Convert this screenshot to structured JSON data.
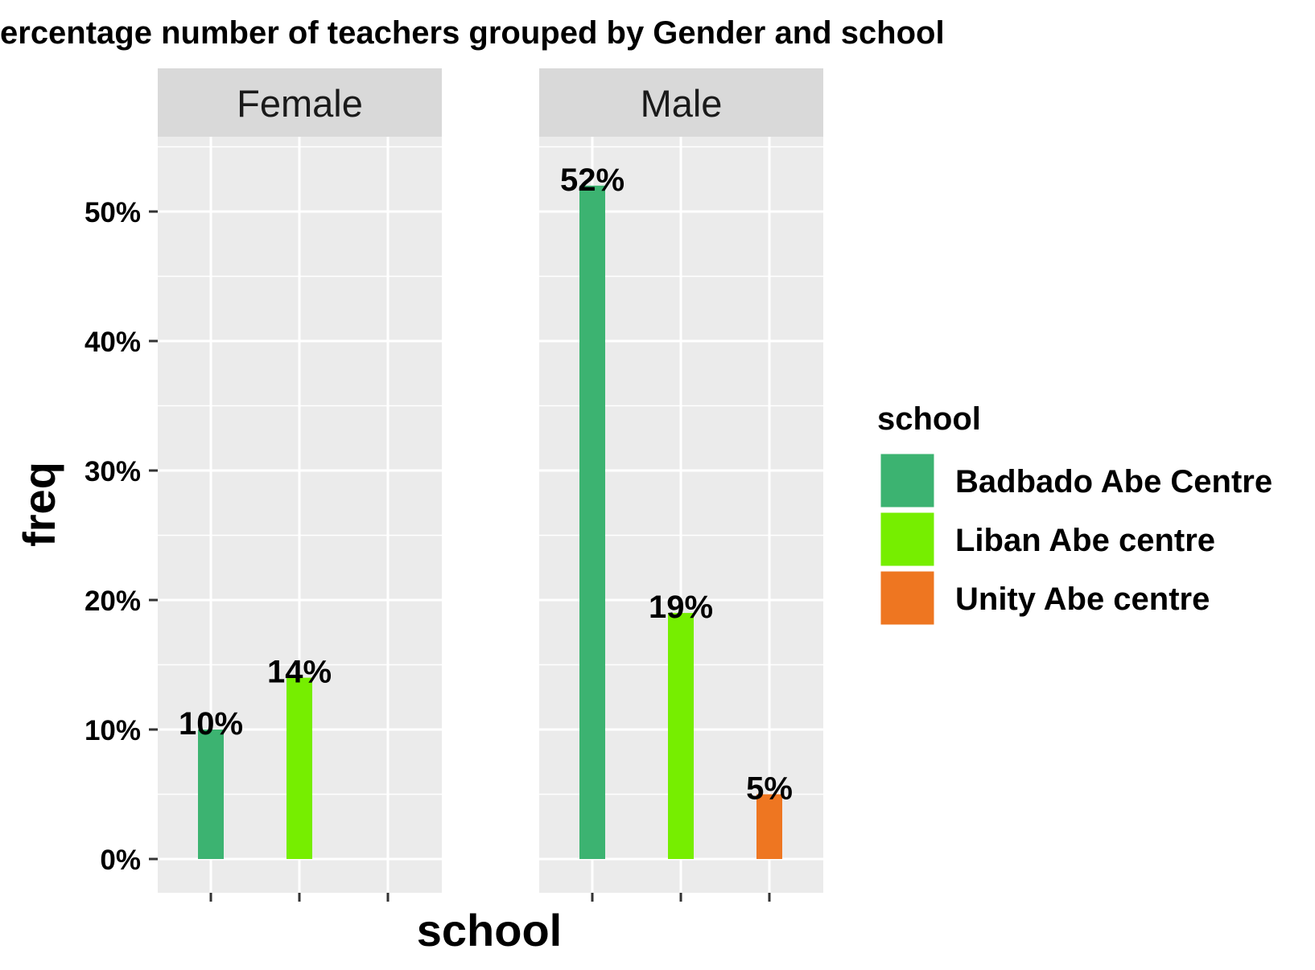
{
  "chart_data": {
    "type": "bar",
    "title": "ercentage number of teachers grouped by Gender and school",
    "xlabel": "school",
    "ylabel": "freq",
    "ylim": [
      0,
      55
    ],
    "y_ticks": [
      "0%",
      "10%",
      "20%",
      "30%",
      "40%",
      "50%"
    ],
    "y_tick_values": [
      0,
      10,
      20,
      30,
      40,
      50
    ],
    "facet_var": "Gender",
    "categories": [
      "Badbado Abe Centre",
      "Liban Abe centre",
      "Unity Abe centre"
    ],
    "x_tick_labels_shown": false,
    "panels": [
      {
        "name": "Female",
        "bars": [
          {
            "category": "Badbado Abe Centre",
            "value": 10,
            "label": "10%"
          },
          {
            "category": "Liban Abe centre",
            "value": 14,
            "label": "14%"
          }
        ]
      },
      {
        "name": "Male",
        "bars": [
          {
            "category": "Badbado Abe Centre",
            "value": 52,
            "label": "52%"
          },
          {
            "category": "Liban Abe centre",
            "value": 19,
            "label": "19%"
          },
          {
            "category": "Unity Abe centre",
            "value": 5,
            "label": "5%"
          }
        ]
      }
    ],
    "legend": {
      "title": "school",
      "position": "right",
      "items": [
        {
          "label": "Badbado Abe Centre",
          "color": "#3CB371"
        },
        {
          "label": "Liban Abe centre",
          "color": "#76EE00"
        },
        {
          "label": "Unity Abe centre",
          "color": "#EE7621"
        }
      ]
    },
    "grid": true,
    "panel_background": "#EBEBEB",
    "strip_background": "#D9D9D9"
  }
}
